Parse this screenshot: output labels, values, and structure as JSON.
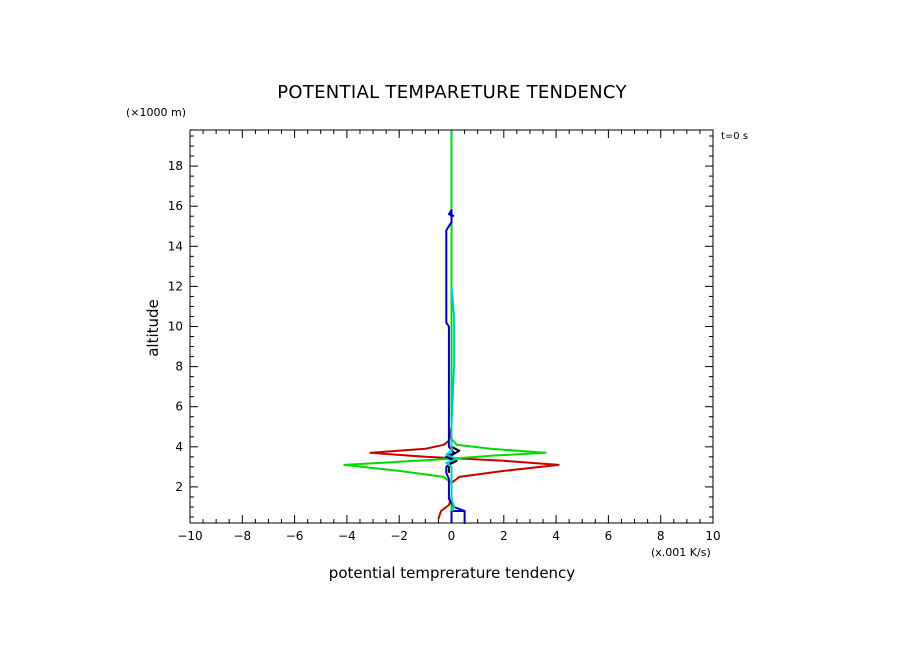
{
  "chart_data": {
    "type": "line",
    "title": "POTENTIAL TEMPARETURE TENDENCY",
    "xlabel": "potential temprerature tendency",
    "ylabel": "altitude",
    "x_unit": "(x.001 K/s)",
    "y_unit": "(×1000 m)",
    "time_label": "t=0 s",
    "xlim": [
      -10,
      10
    ],
    "ylim": [
      0.2,
      19.8
    ],
    "x_ticks": [
      "−10",
      "−8",
      "−6",
      "−4",
      "−2",
      "0",
      "2",
      "4",
      "6",
      "8",
      "10"
    ],
    "y_ticks": [
      "2",
      "4",
      "6",
      "8",
      "10",
      "12",
      "14",
      "16",
      "18"
    ],
    "grid": false,
    "series": [
      {
        "color": "#cc0000",
        "points": [
          [
            -0.5,
            0.4
          ],
          [
            -0.4,
            0.8
          ],
          [
            -0.1,
            1.1
          ],
          [
            0.0,
            1.5
          ],
          [
            0.0,
            2.2
          ],
          [
            0.3,
            2.5
          ],
          [
            2.0,
            2.8
          ],
          [
            4.1,
            3.1
          ],
          [
            2.0,
            3.3
          ],
          [
            0.5,
            3.4
          ],
          [
            -1.0,
            3.5
          ],
          [
            -3.1,
            3.7
          ],
          [
            -1.0,
            3.9
          ],
          [
            -0.3,
            4.1
          ],
          [
            -0.1,
            4.3
          ],
          [
            0.0,
            5.0
          ],
          [
            0.0,
            19.8
          ]
        ]
      },
      {
        "color": "#00dd00",
        "points": [
          [
            0.0,
            0.2
          ],
          [
            0.0,
            2.2
          ],
          [
            -0.3,
            2.5
          ],
          [
            -2.0,
            2.8
          ],
          [
            -4.1,
            3.1
          ],
          [
            -2.0,
            3.25
          ],
          [
            0.0,
            3.4
          ],
          [
            1.5,
            3.55
          ],
          [
            3.6,
            3.7
          ],
          [
            1.5,
            3.9
          ],
          [
            0.2,
            4.1
          ],
          [
            0.0,
            4.4
          ],
          [
            0.0,
            19.8
          ]
        ]
      },
      {
        "color": "#0000bb",
        "points": [
          [
            0.0,
            0.2
          ],
          [
            0.0,
            0.8
          ],
          [
            0.5,
            0.8
          ],
          [
            0.5,
            0.2
          ],
          [
            0.5,
            0.8
          ],
          [
            0.1,
            1.0
          ],
          [
            -0.1,
            1.4
          ],
          [
            -0.1,
            2.4
          ],
          [
            -0.2,
            2.7
          ],
          [
            -0.2,
            3.0
          ],
          [
            0.1,
            3.3
          ],
          [
            -0.2,
            3.5
          ],
          [
            0.1,
            3.7
          ],
          [
            -0.1,
            4.0
          ],
          [
            -0.1,
            10.0
          ],
          [
            -0.2,
            10.2
          ],
          [
            -0.2,
            14.8
          ],
          [
            0.0,
            15.2
          ],
          [
            0.0,
            15.8
          ],
          [
            -0.1,
            15.6
          ],
          [
            0.1,
            15.5
          ]
        ]
      },
      {
        "color": "#000000",
        "points": [
          [
            -0.1,
            2.7
          ],
          [
            -0.1,
            3.1
          ],
          [
            0.2,
            3.3
          ],
          [
            -0.1,
            3.5
          ],
          [
            0.3,
            3.8
          ],
          [
            0.0,
            4.0
          ]
        ]
      },
      {
        "color": "#00cccc",
        "points": [
          [
            0.0,
            0.8
          ],
          [
            0.1,
            1.0
          ],
          [
            0.0,
            1.4
          ],
          [
            0.0,
            3.0
          ],
          [
            -0.2,
            3.2
          ],
          [
            0.2,
            3.4
          ],
          [
            -0.2,
            3.6
          ],
          [
            0.0,
            3.8
          ],
          [
            0.0,
            5.0
          ],
          [
            0.1,
            8.0
          ],
          [
            0.1,
            10.5
          ],
          [
            0.0,
            12.0
          ]
        ]
      }
    ]
  }
}
